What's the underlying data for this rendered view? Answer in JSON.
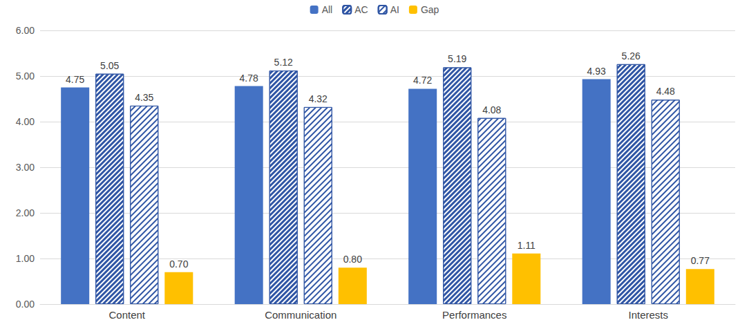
{
  "chart_data": {
    "type": "bar",
    "categories": [
      "Content",
      "Communication",
      "Performances",
      "Interests"
    ],
    "series": [
      {
        "name": "All",
        "color": "#4472c4",
        "values": [
          4.75,
          4.78,
          4.72,
          4.93
        ],
        "value_labels": [
          "4.75",
          "4.78",
          "4.72",
          "4.93"
        ]
      },
      {
        "name": "AC",
        "color": "#2f55a4",
        "marker": "dense_hatch",
        "values": [
          5.05,
          5.12,
          5.19,
          5.26
        ],
        "value_labels": [
          "5.05",
          "5.12",
          "5.19",
          "5.26"
        ]
      },
      {
        "name": "AI",
        "color": "#2f55a4",
        "marker": "hatch",
        "values": [
          4.35,
          4.32,
          4.08,
          4.48
        ],
        "value_labels": [
          "4.35",
          "4.32",
          "4.08",
          "4.48"
        ]
      },
      {
        "name": "Gap",
        "color": "#ffc000",
        "values": [
          0.7,
          0.8,
          1.11,
          0.77
        ],
        "value_labels": [
          "0.70",
          "0.80",
          "1.11",
          "0.77"
        ]
      }
    ],
    "ylim": [
      0,
      6
    ],
    "yticks": [
      {
        "value": 0,
        "label": "0.00"
      },
      {
        "value": 1,
        "label": "1.00"
      },
      {
        "value": 2,
        "label": "2.00"
      },
      {
        "value": 3,
        "label": "3.00"
      },
      {
        "value": 4,
        "label": "4.00"
      },
      {
        "value": 5,
        "label": "5.00"
      },
      {
        "value": 6,
        "label": "6.00"
      }
    ],
    "grid": true,
    "legend": "top",
    "data_labels": true
  }
}
